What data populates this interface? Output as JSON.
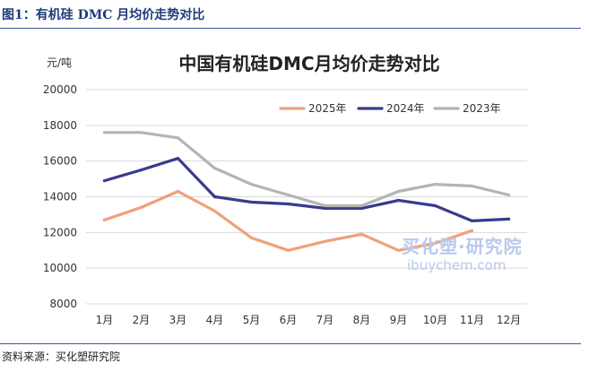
{
  "figure_label": "图1：有机硅 DMC 月均价走势对比",
  "source_text": "资料来源：买化塑研究院",
  "watermark": {
    "cn": "买化塑·研究院",
    "en": "ibuychem.com"
  },
  "chart_data": {
    "type": "line",
    "title": "中国有机硅DMC月均价走势对比",
    "ylabel": "元/吨",
    "xlabel": "",
    "ylim": [
      8000,
      20000
    ],
    "yticks": [
      8000,
      10000,
      12000,
      14000,
      16000,
      18000,
      20000
    ],
    "ytick_labels": [
      "8000",
      "10000",
      "12000",
      "14000",
      "16000",
      "18000",
      "20000"
    ],
    "grid": true,
    "legend_position": "top-right",
    "categories": [
      "1月",
      "2月",
      "3月",
      "4月",
      "5月",
      "6月",
      "7月",
      "8月",
      "9月",
      "10月",
      "11月",
      "12月"
    ],
    "series": [
      {
        "name": "2025年",
        "color": "#f0a07a",
        "values": [
          12700,
          13400,
          14300,
          13200,
          11700,
          11000,
          11500,
          11900,
          11000,
          11400,
          12100,
          null
        ]
      },
      {
        "name": "2024年",
        "color": "#3a3a8f",
        "values": [
          14900,
          15500,
          16150,
          14000,
          13700,
          13600,
          13350,
          13350,
          13800,
          13500,
          12650,
          12750
        ]
      },
      {
        "name": "2023年",
        "color": "#b4b4b4",
        "values": [
          17600,
          17600,
          17300,
          15600,
          14700,
          14100,
          13500,
          13500,
          14300,
          14700,
          14600,
          14100
        ]
      }
    ]
  }
}
